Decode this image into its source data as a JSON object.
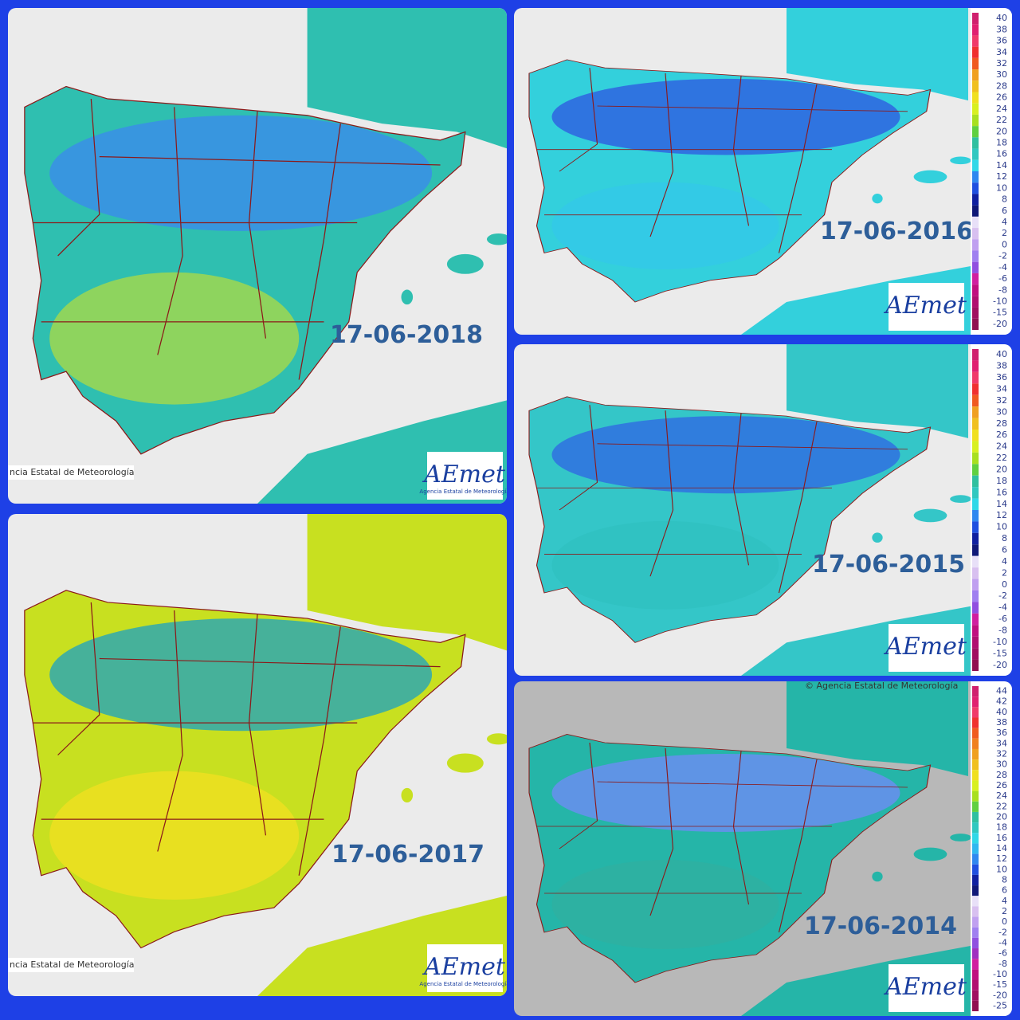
{
  "panels": [
    {
      "date": "17-06-2018",
      "credit": "ncia Estatal de Meteorología",
      "logo": "AEmet",
      "logo_sub": "Agencia Estatal de Meteorología"
    },
    {
      "date": "17-06-2016",
      "logo": "AEmet",
      "legend": [
        40,
        38,
        36,
        34,
        32,
        30,
        28,
        26,
        24,
        22,
        20,
        18,
        16,
        14,
        12,
        10,
        8,
        6,
        4,
        2,
        0,
        -2,
        -4,
        -6,
        -8,
        -10,
        -15,
        -20
      ]
    },
    {
      "date": "17-06-2015",
      "logo": "AEmet",
      "legend": [
        40,
        38,
        36,
        34,
        32,
        30,
        28,
        26,
        24,
        22,
        20,
        18,
        16,
        14,
        12,
        10,
        8,
        6,
        4,
        2,
        0,
        -2,
        -4,
        -6,
        -8,
        -10,
        -15,
        -20
      ]
    },
    {
      "date": "17-06-2017",
      "credit": "ncia Estatal de Meteorología",
      "logo": "AEmet",
      "logo_sub": "Agencia Estatal de Meteorología"
    },
    {
      "date": "17-06-2014",
      "copyright": "© Agencia Estatal de Meteorología",
      "logo": "AEmet",
      "legend": [
        44,
        42,
        40,
        38,
        36,
        34,
        32,
        30,
        28,
        26,
        24,
        22,
        20,
        18,
        16,
        14,
        12,
        10,
        8,
        6,
        4,
        2,
        0,
        -2,
        -4,
        -6,
        -8,
        -10,
        -15,
        -20,
        -25
      ]
    }
  ]
}
